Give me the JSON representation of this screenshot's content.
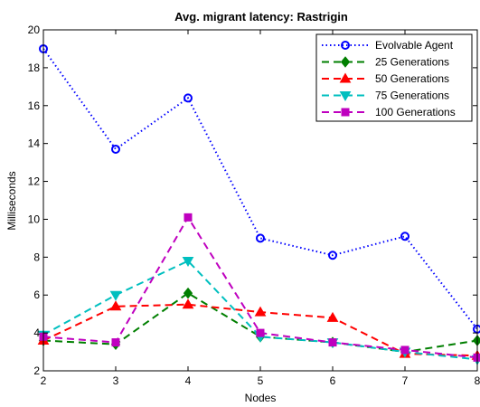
{
  "chart_data": {
    "type": "line",
    "title": "Avg. migrant latency: Rastrigin",
    "xlabel": "Nodes",
    "ylabel": "Milliseconds",
    "x": [
      2,
      3,
      4,
      5,
      6,
      7,
      8
    ],
    "xlim": [
      2,
      8
    ],
    "ylim": [
      2,
      20
    ],
    "xticks": [
      "2",
      "3",
      "4",
      "5",
      "6",
      "7",
      "8"
    ],
    "yticks": [
      "2",
      "4",
      "6",
      "8",
      "10",
      "12",
      "14",
      "16",
      "18",
      "20"
    ],
    "grid": false,
    "legend_position": "top-right",
    "series": [
      {
        "name": "Evolvable Agent",
        "values": [
          19.0,
          13.7,
          16.4,
          9.0,
          8.1,
          9.1,
          4.2
        ],
        "color": "#0000ff",
        "marker": "circle",
        "dash": "dotted"
      },
      {
        "name": "25 Generations",
        "values": [
          3.6,
          3.4,
          6.1,
          3.8,
          3.5,
          3.0,
          3.6
        ],
        "color": "#007f00",
        "marker": "diamond",
        "dash": "dashed"
      },
      {
        "name": "50 Generations",
        "values": [
          3.6,
          5.4,
          5.5,
          5.1,
          4.8,
          2.9,
          2.8
        ],
        "color": "#ff0000",
        "marker": "triangle-up",
        "dash": "dashed"
      },
      {
        "name": "75 Generations",
        "values": [
          3.9,
          6.0,
          7.8,
          3.8,
          3.5,
          3.0,
          2.6
        ],
        "color": "#00bfbf",
        "marker": "triangle-down",
        "dash": "dashed"
      },
      {
        "name": "100 Generations",
        "values": [
          3.8,
          3.5,
          10.1,
          4.0,
          3.5,
          3.1,
          2.7
        ],
        "color": "#bf00bf",
        "marker": "square",
        "dash": "dashed"
      }
    ]
  }
}
